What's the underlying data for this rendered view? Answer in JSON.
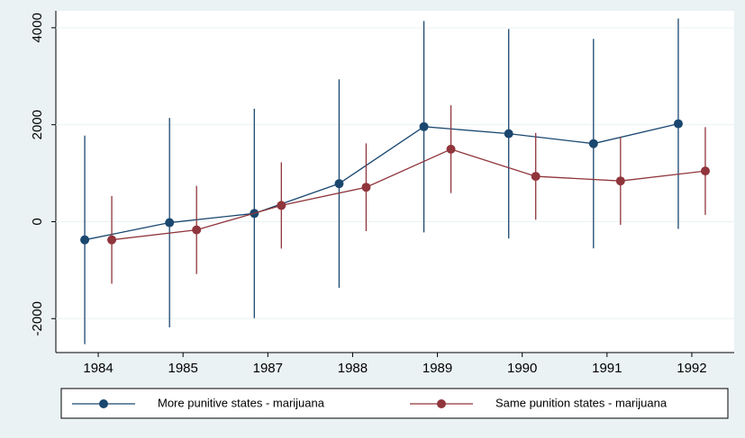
{
  "chart_data": {
    "type": "line",
    "categories": [
      "1984",
      "1985",
      "1987",
      "1988",
      "1989",
      "1990",
      "1991",
      "1992"
    ],
    "series": [
      {
        "name": "More punitive states - marijuana",
        "color": "#1a476f",
        "values": [
          -375,
          -20,
          170,
          785,
          1960,
          1815,
          1610,
          2020
        ],
        "errors": [
          2150,
          2160,
          2160,
          2150,
          2180,
          2160,
          2160,
          2170
        ]
      },
      {
        "name": "Same punition states - marijuana",
        "color": "#90353b",
        "values": [
          -375,
          -170,
          335,
          710,
          1495,
          935,
          840,
          1045
        ],
        "errors": [
          905,
          910,
          890,
          905,
          905,
          895,
          905,
          905
        ]
      }
    ],
    "ylim": [
      -2700,
      4350
    ],
    "yticks": [
      -2000,
      0,
      2000,
      4000
    ],
    "grid": true,
    "legend": "bottom"
  }
}
